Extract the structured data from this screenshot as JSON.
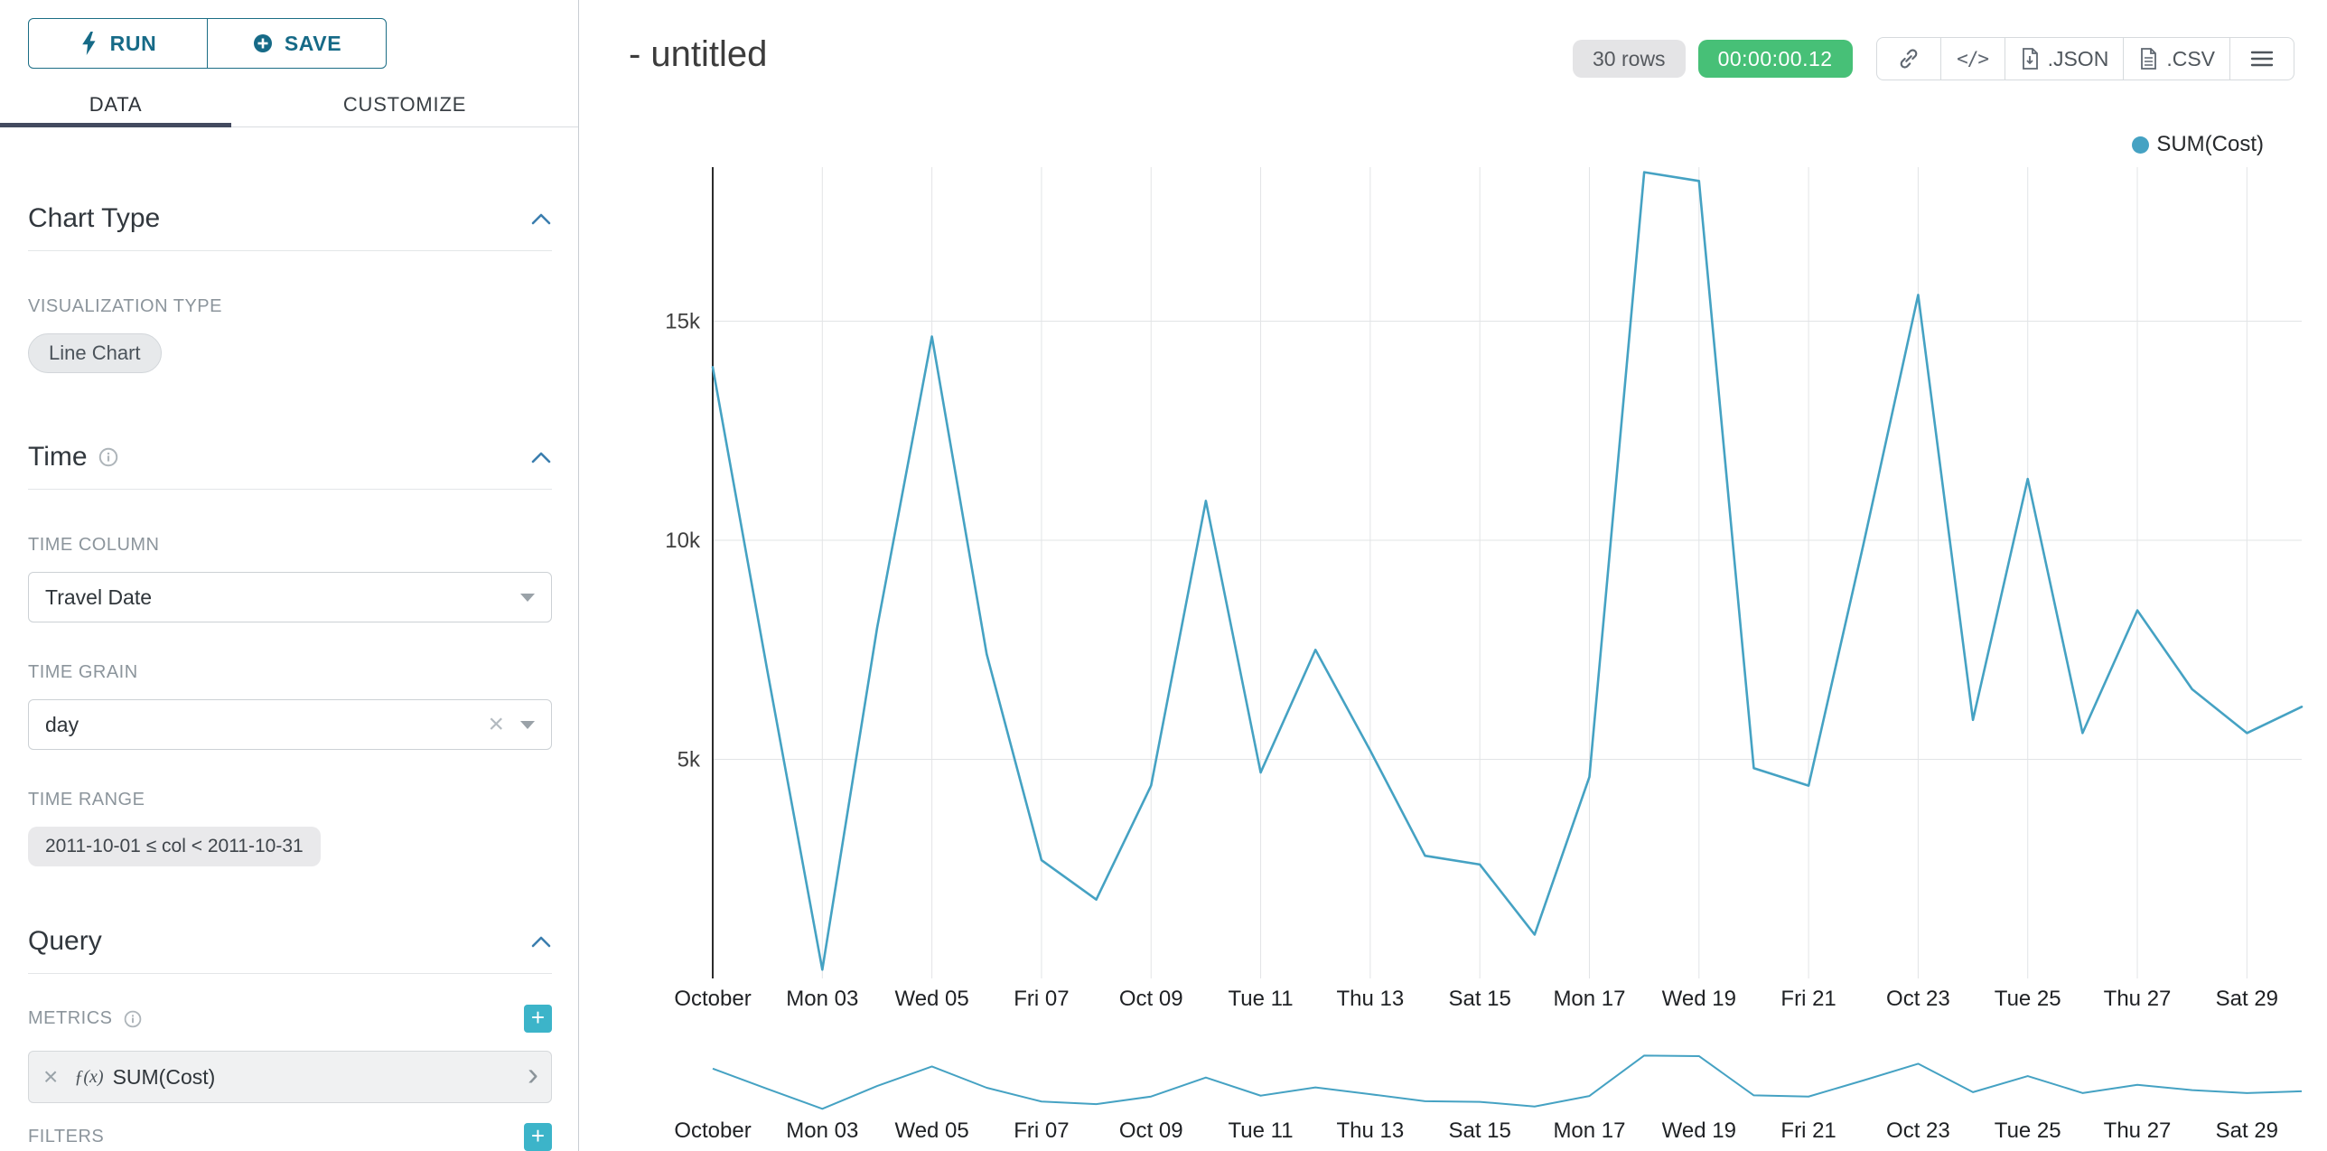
{
  "sidebar": {
    "run_button": "RUN",
    "save_button": "SAVE",
    "tabs": {
      "data": "DATA",
      "customize": "CUSTOMIZE"
    },
    "chart_type_section": {
      "title": "Chart Type",
      "visualization_type_label": "VISUALIZATION TYPE",
      "visualization_type_value": "Line Chart"
    },
    "time_section": {
      "title": "Time",
      "time_column_label": "TIME COLUMN",
      "time_column_value": "Travel Date",
      "time_grain_label": "TIME GRAIN",
      "time_grain_value": "day",
      "time_range_label": "TIME RANGE",
      "time_range_value": "2011-10-01 ≤ col < 2011-10-31"
    },
    "query_section": {
      "title": "Query",
      "metrics_label": "METRICS",
      "metric": {
        "fx": "ƒ(x)",
        "label": "SUM(Cost)"
      },
      "filters_label": "FILTERS"
    }
  },
  "header": {
    "title": "- untitled",
    "rows_badge": "30 rows",
    "timer_badge": "00:00:00.12",
    "buttons": {
      "code": "</>",
      "json": ".JSON",
      "csv": ".CSV"
    }
  },
  "chart_data": {
    "type": "line",
    "title": "- untitled",
    "legend": [
      {
        "name": "SUM(Cost)",
        "color": "#45a2c3"
      }
    ],
    "line_color": "#45a2c3",
    "grid": true,
    "mini_chart": true,
    "x": [
      "2011-10-01",
      "2011-10-02",
      "2011-10-03",
      "2011-10-04",
      "2011-10-05",
      "2011-10-06",
      "2011-10-07",
      "2011-10-08",
      "2011-10-09",
      "2011-10-10",
      "2011-10-11",
      "2011-10-12",
      "2011-10-13",
      "2011-10-14",
      "2011-10-15",
      "2011-10-16",
      "2011-10-17",
      "2011-10-18",
      "2011-10-19",
      "2011-10-20",
      "2011-10-21",
      "2011-10-22",
      "2011-10-23",
      "2011-10-24",
      "2011-10-25",
      "2011-10-26",
      "2011-10-27",
      "2011-10-28",
      "2011-10-29",
      "2011-10-30"
    ],
    "x_tick_labels": [
      "October",
      "Mon 03",
      "Wed 05",
      "Fri 07",
      "Oct 09",
      "Tue 11",
      "Thu 13",
      "Sat 15",
      "Mon 17",
      "Wed 19",
      "Fri 21",
      "Oct 23",
      "Tue 25",
      "Thu 27",
      "Sat 29"
    ],
    "x_tick_every": 2,
    "y_ticks": [
      {
        "label": "5k",
        "value": 5000
      },
      {
        "label": "10k",
        "value": 10000
      },
      {
        "label": "15k",
        "value": 15000
      }
    ],
    "ylim": [
      0,
      18500
    ],
    "series": [
      {
        "name": "SUM(Cost)",
        "values": [
          13950,
          7000,
          200,
          8000,
          14650,
          7400,
          2700,
          1800,
          4400,
          10900,
          4700,
          7500,
          5200,
          2800,
          2600,
          1000,
          4600,
          18400,
          18200,
          4800,
          4400,
          9900,
          15600,
          5900,
          11400,
          5600,
          8400,
          6600,
          5600,
          6200
        ]
      }
    ]
  }
}
